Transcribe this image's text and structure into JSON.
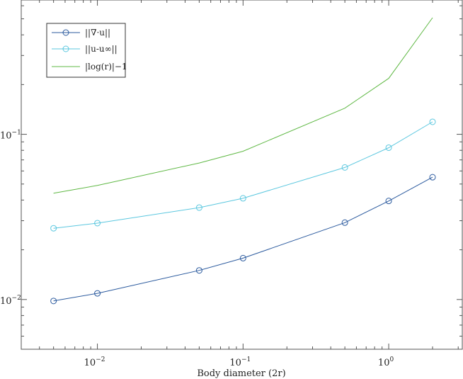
{
  "chart_data": {
    "type": "line",
    "xscale": "log",
    "yscale": "log",
    "xlim": [
      0.003,
      3.2
    ],
    "ylim": [
      0.005,
      0.65
    ],
    "xlabel": "Body diameter (2r)",
    "ylabel": "",
    "title": "",
    "grid": false,
    "legend_position": "top-left",
    "xticks": [
      {
        "value": 0.01,
        "base": "10",
        "exp": "−2"
      },
      {
        "value": 0.1,
        "base": "10",
        "exp": "−1"
      },
      {
        "value": 1,
        "base": "10",
        "exp": "0"
      }
    ],
    "yticks": [
      {
        "value": 0.01,
        "base": "10",
        "exp": "−2"
      },
      {
        "value": 0.1,
        "base": "10",
        "exp": "−1"
      }
    ],
    "x": [
      0.005,
      0.01,
      0.05,
      0.1,
      0.5,
      1,
      2
    ],
    "series": [
      {
        "name": "||∇·u||",
        "color": "#2b5a9e",
        "marker": "circle",
        "values": [
          0.0098,
          0.0109,
          0.015,
          0.0178,
          0.0292,
          0.0395,
          0.055
        ]
      },
      {
        "name": "||u-u∞||",
        "color": "#5bc7df",
        "marker": "circle",
        "values": [
          0.027,
          0.029,
          0.036,
          0.041,
          0.063,
          0.083,
          0.119
        ]
      },
      {
        "name": "|log(r)|−1",
        "color": "#5fb844",
        "marker": "none",
        "values": [
          0.044,
          0.049,
          0.067,
          0.079,
          0.144,
          0.218,
          0.508
        ]
      }
    ]
  }
}
